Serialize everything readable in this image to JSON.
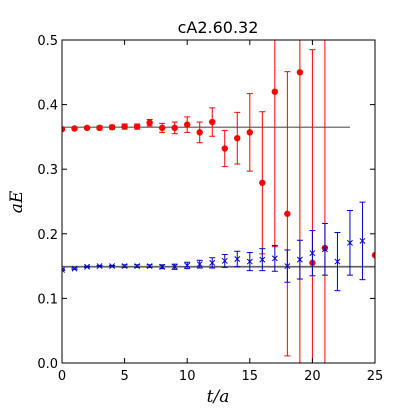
{
  "chart_data": {
    "type": "scatter",
    "title": "cA2.60.32",
    "xlabel": "t/a",
    "ylabel": "aE",
    "xlim": [
      0,
      25
    ],
    "ylim": [
      0.0,
      0.5
    ],
    "xticks": [
      0,
      5,
      10,
      15,
      20,
      25
    ],
    "yticks": [
      0.0,
      0.1,
      0.2,
      0.3,
      0.4,
      0.5
    ],
    "grid": false,
    "series": [
      {
        "marker": "circle",
        "color": "#ff0000",
        "points": [
          {
            "x": 0,
            "y": 0.362,
            "err": 0.002
          },
          {
            "x": 1,
            "y": 0.363,
            "err": 0.002
          },
          {
            "x": 2,
            "y": 0.364,
            "err": 0.002
          },
          {
            "x": 3,
            "y": 0.364,
            "err": 0.003
          },
          {
            "x": 4,
            "y": 0.365,
            "err": 0.003
          },
          {
            "x": 5,
            "y": 0.366,
            "err": 0.004
          },
          {
            "x": 6,
            "y": 0.366,
            "err": 0.004
          },
          {
            "x": 7,
            "y": 0.372,
            "err": 0.005
          },
          {
            "x": 8,
            "y": 0.364,
            "err": 0.007
          },
          {
            "x": 9,
            "y": 0.364,
            "err": 0.009
          },
          {
            "x": 10,
            "y": 0.369,
            "err": 0.012
          },
          {
            "x": 11,
            "y": 0.357,
            "err": 0.016
          },
          {
            "x": 12,
            "y": 0.373,
            "err": 0.022
          },
          {
            "x": 13,
            "y": 0.332,
            "err": 0.028
          },
          {
            "x": 14,
            "y": 0.348,
            "err": 0.04
          },
          {
            "x": 15,
            "y": 0.357,
            "err": 0.06
          },
          {
            "x": 16,
            "y": 0.279,
            "err": 0.11
          },
          {
            "x": 17,
            "y": 0.42,
            "err": 0.24
          },
          {
            "x": 18,
            "y": 0.231,
            "err": 0.22
          },
          {
            "x": 19,
            "y": 0.45,
            "err": 0.6
          },
          {
            "x": 20,
            "y": 0.155,
            "err": 0.33
          },
          {
            "x": 21,
            "y": 0.178,
            "err": 0.6
          },
          {
            "x": 25,
            "y": 0.167,
            "err": 0.6
          }
        ],
        "fit": {
          "x": [
            0,
            23
          ],
          "y": 0.365,
          "color": "#555555"
        }
      },
      {
        "marker": "x",
        "color": "#0000cc",
        "points": [
          {
            "x": 0,
            "y": 0.144,
            "err": 0.001
          },
          {
            "x": 1,
            "y": 0.146,
            "err": 0.001
          },
          {
            "x": 2,
            "y": 0.149,
            "err": 0.001
          },
          {
            "x": 3,
            "y": 0.15,
            "err": 0.001
          },
          {
            "x": 4,
            "y": 0.15,
            "err": 0.001
          },
          {
            "x": 5,
            "y": 0.15,
            "err": 0.002
          },
          {
            "x": 6,
            "y": 0.15,
            "err": 0.002
          },
          {
            "x": 7,
            "y": 0.15,
            "err": 0.002
          },
          {
            "x": 8,
            "y": 0.149,
            "err": 0.003
          },
          {
            "x": 9,
            "y": 0.149,
            "err": 0.004
          },
          {
            "x": 10,
            "y": 0.151,
            "err": 0.005
          },
          {
            "x": 11,
            "y": 0.153,
            "err": 0.006
          },
          {
            "x": 12,
            "y": 0.155,
            "err": 0.008
          },
          {
            "x": 13,
            "y": 0.158,
            "err": 0.01
          },
          {
            "x": 14,
            "y": 0.161,
            "err": 0.012
          },
          {
            "x": 15,
            "y": 0.157,
            "err": 0.014
          },
          {
            "x": 16,
            "y": 0.16,
            "err": 0.017
          },
          {
            "x": 17,
            "y": 0.162,
            "err": 0.02
          },
          {
            "x": 18,
            "y": 0.15,
            "err": 0.025
          },
          {
            "x": 19,
            "y": 0.16,
            "err": 0.03
          },
          {
            "x": 20,
            "y": 0.17,
            "err": 0.035
          },
          {
            "x": 21,
            "y": 0.176,
            "err": 0.04
          },
          {
            "x": 22,
            "y": 0.157,
            "err": 0.045
          },
          {
            "x": 23,
            "y": 0.186,
            "err": 0.05
          },
          {
            "x": 24,
            "y": 0.189,
            "err": 0.06
          }
        ],
        "fit": {
          "x": [
            0,
            25
          ],
          "y": 0.149,
          "band": 0.002,
          "color": "#555555"
        }
      }
    ]
  }
}
